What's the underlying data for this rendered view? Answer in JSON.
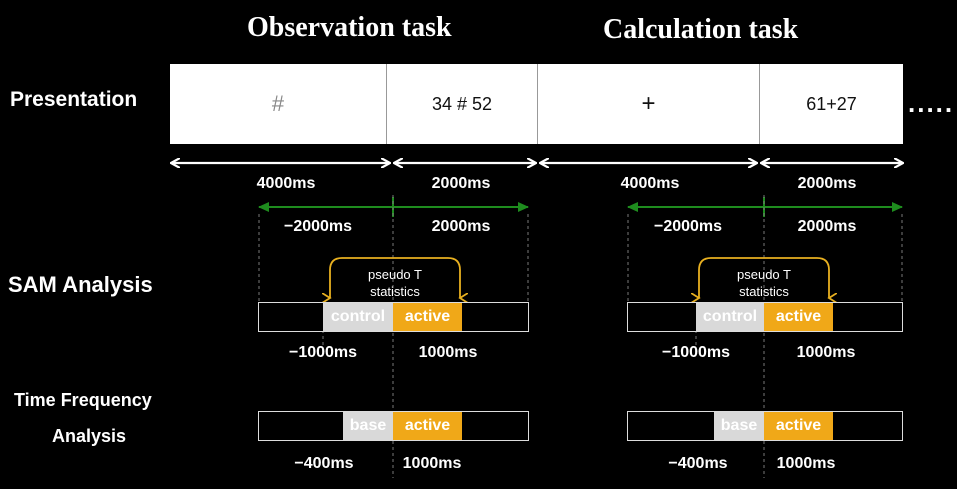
{
  "titles": {
    "observation": "Observation task",
    "calculation": "Calculation task"
  },
  "labels": {
    "presentation": "Presentation",
    "sam": "SAM Analysis",
    "tf_line1": "Time Frequency",
    "tf_line2": "Analysis"
  },
  "presentation": {
    "cells": [
      "#",
      "34 # 52",
      "+",
      "61+27"
    ],
    "ellipsis": "....."
  },
  "durations": {
    "obs_fixation": "4000ms",
    "obs_stimulus": "2000ms",
    "calc_fixation": "4000ms",
    "calc_stimulus": "2000ms"
  },
  "windows": {
    "obs_pre": "−2000ms",
    "obs_post": "2000ms",
    "calc_pre": "−2000ms",
    "calc_post": "2000ms"
  },
  "sam": {
    "pseudo_t_line1": "pseudo T",
    "pseudo_t_line2": "statistics",
    "control_label": "control",
    "active_label": "active",
    "obs_pre": "−1000ms",
    "obs_post": "1000ms",
    "calc_pre": "−1000ms",
    "calc_post": "1000ms"
  },
  "tf": {
    "base_label": "base",
    "active_label": "active",
    "obs_pre": "−400ms",
    "obs_post": "1000ms",
    "calc_pre": "−400ms",
    "calc_post": "1000ms"
  },
  "colors": {
    "background": "#000000",
    "arrow_white": "#ffffff",
    "arrow_green": "#1e8c1e",
    "orange": "#f0a818",
    "gray": "#d9d9d9",
    "bracket": "#e8b020"
  }
}
